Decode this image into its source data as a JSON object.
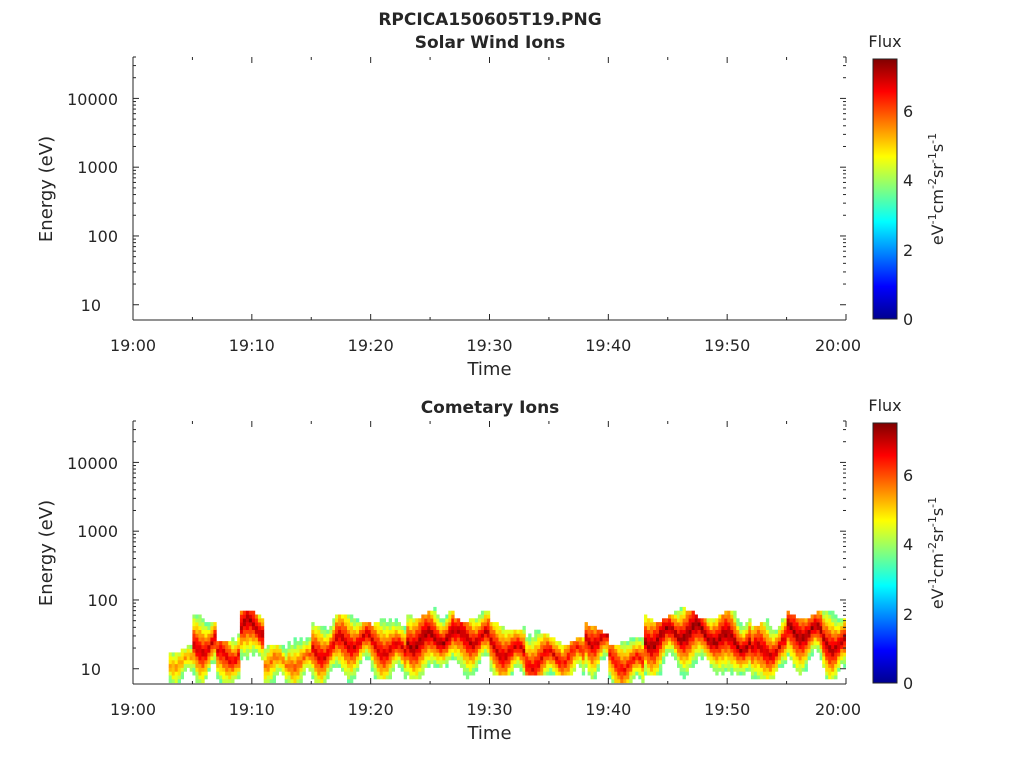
{
  "figure": {
    "title": "RPCICA150605T19.PNG"
  },
  "chart_data": [
    {
      "type": "heatmap",
      "title": "Solar Wind Ions",
      "xlabel": "Time",
      "ylabel": "Energy (eV)",
      "x_ticks": [
        "19:00",
        "19:10",
        "19:20",
        "19:30",
        "19:40",
        "19:50",
        "20:00"
      ],
      "xlim": [
        "19:00",
        "20:00"
      ],
      "yscale": "log",
      "ylim": [
        6,
        40000
      ],
      "y_ticks": [
        10,
        100,
        1000,
        10000
      ],
      "y_tick_labels": [
        "10",
        "100",
        "1000",
        "10000"
      ],
      "colorbar": {
        "label": "Flux",
        "unit": "eV-1cm-2sr-1s-1",
        "range": [
          0,
          7.5
        ],
        "ticks": [
          0,
          2,
          4,
          6
        ],
        "colormap": "jet"
      },
      "data": "empty (no ion flux in panel)",
      "segments": []
    },
    {
      "type": "heatmap",
      "title": "Cometary Ions",
      "xlabel": "Time",
      "ylabel": "Energy (eV)",
      "x_ticks": [
        "19:00",
        "19:10",
        "19:20",
        "19:30",
        "19:40",
        "19:50",
        "20:00"
      ],
      "xlim": [
        "19:00",
        "20:00"
      ],
      "yscale": "log",
      "ylim": [
        6,
        40000
      ],
      "y_ticks": [
        10,
        100,
        1000,
        10000
      ],
      "y_tick_labels": [
        "10",
        "100",
        "1000",
        "10000"
      ],
      "colorbar": {
        "label": "Flux",
        "unit": "eV-1cm-2sr-1s-1",
        "range": [
          0,
          7.5
        ],
        "ticks": [
          0,
          2,
          4,
          6
        ],
        "colormap": "jet"
      },
      "energy_range_of_flux_eV": [
        6,
        80
      ],
      "segments": [
        {
          "t0": "19:03",
          "t1": "19:05",
          "e_lo": 6,
          "e_hi": 25,
          "e_peak": 14,
          "max_flux": 5.5
        },
        {
          "t0": "19:05",
          "t1": "19:07",
          "e_lo": 6,
          "e_hi": 60,
          "e_peak": 25,
          "max_flux": 7.0
        },
        {
          "t0": "19:07",
          "t1": "19:09",
          "e_lo": 6,
          "e_hi": 35,
          "e_peak": 15,
          "max_flux": 6.8
        },
        {
          "t0": "19:09",
          "t1": "19:11",
          "e_lo": 7,
          "e_hi": 70,
          "e_peak": 35,
          "max_flux": 7.2
        },
        {
          "t0": "19:11",
          "t1": "19:13",
          "e_lo": 6,
          "e_hi": 30,
          "e_peak": 12,
          "max_flux": 5.8
        },
        {
          "t0": "19:13",
          "t1": "19:15",
          "e_lo": 6,
          "e_hi": 40,
          "e_peak": 15,
          "max_flux": 6.0
        },
        {
          "t0": "19:15",
          "t1": "19:17",
          "e_lo": 6,
          "e_hi": 60,
          "e_peak": 20,
          "max_flux": 6.9
        },
        {
          "t0": "19:17",
          "t1": "19:20",
          "e_lo": 6,
          "e_hi": 65,
          "e_peak": 22,
          "max_flux": 7.0
        },
        {
          "t0": "19:20",
          "t1": "19:23",
          "e_lo": 7,
          "e_hi": 60,
          "e_peak": 20,
          "max_flux": 6.9
        },
        {
          "t0": "19:23",
          "t1": "19:27",
          "e_lo": 7,
          "e_hi": 80,
          "e_peak": 30,
          "max_flux": 7.3
        },
        {
          "t0": "19:27",
          "t1": "19:30",
          "e_lo": 7,
          "e_hi": 70,
          "e_peak": 25,
          "max_flux": 7.1
        },
        {
          "t0": "19:30",
          "t1": "19:33",
          "e_lo": 8,
          "e_hi": 50,
          "e_peak": 20,
          "max_flux": 7.0
        },
        {
          "t0": "19:33",
          "t1": "19:36",
          "e_lo": 8,
          "e_hi": 35,
          "e_peak": 15,
          "max_flux": 6.8
        },
        {
          "t0": "19:36",
          "t1": "19:38",
          "e_lo": 8,
          "e_hi": 30,
          "e_peak": 14,
          "max_flux": 6.5
        },
        {
          "t0": "19:38",
          "t1": "19:40",
          "e_lo": 7,
          "e_hi": 45,
          "e_peak": 25,
          "max_flux": 7.0
        },
        {
          "t0": "19:40",
          "t1": "19:43",
          "e_lo": 6,
          "e_hi": 30,
          "e_peak": 14,
          "max_flux": 6.6
        },
        {
          "t0": "19:43",
          "t1": "19:46",
          "e_lo": 8,
          "e_hi": 70,
          "e_peak": 30,
          "max_flux": 7.3
        },
        {
          "t0": "19:46",
          "t1": "19:49",
          "e_lo": 7,
          "e_hi": 75,
          "e_peak": 30,
          "max_flux": 7.4
        },
        {
          "t0": "19:49",
          "t1": "19:52",
          "e_lo": 7,
          "e_hi": 70,
          "e_peak": 28,
          "max_flux": 7.3
        },
        {
          "t0": "19:52",
          "t1": "19:55",
          "e_lo": 7,
          "e_hi": 60,
          "e_peak": 20,
          "max_flux": 7.0
        },
        {
          "t0": "19:55",
          "t1": "19:58",
          "e_lo": 7,
          "e_hi": 75,
          "e_peak": 30,
          "max_flux": 7.3
        },
        {
          "t0": "19:58",
          "t1": "20:00",
          "e_lo": 7,
          "e_hi": 70,
          "e_peak": 25,
          "max_flux": 7.2
        }
      ]
    }
  ]
}
